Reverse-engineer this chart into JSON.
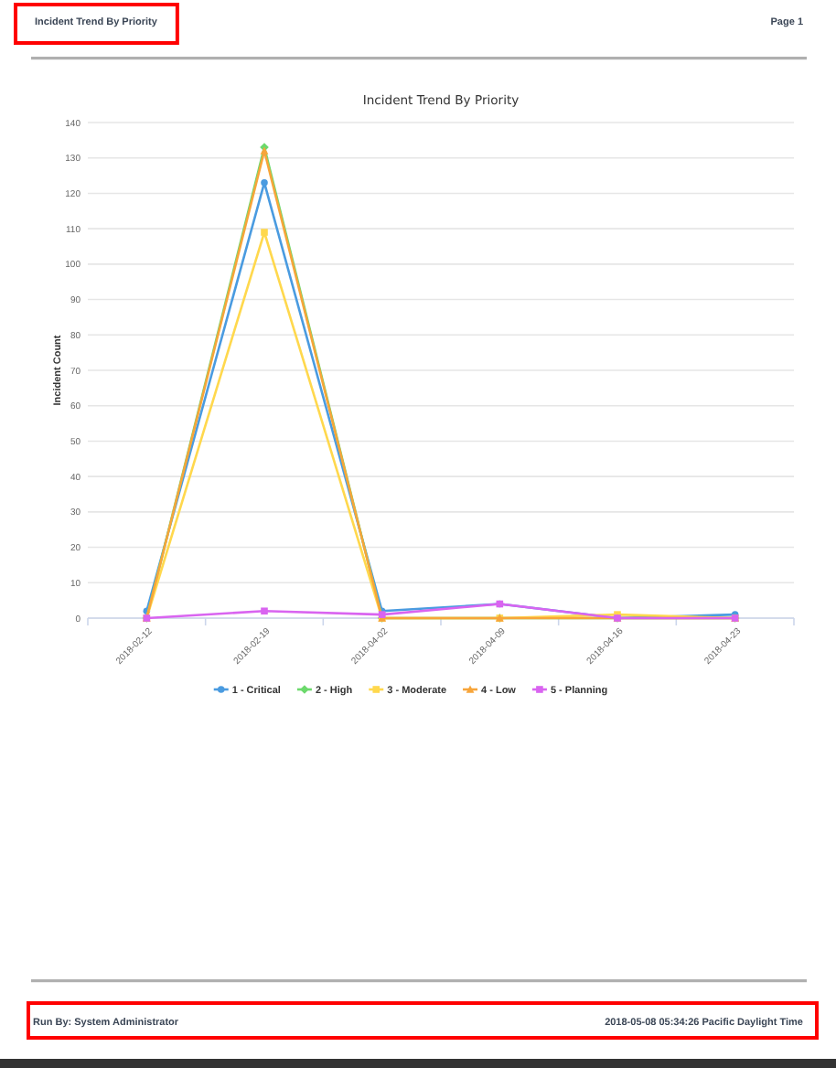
{
  "chart_data": {
    "type": "line",
    "title": "Incident Trend By Priority",
    "ylabel": "Incident Count",
    "categories": [
      "2018-02-12",
      "2018-02-19",
      "2018-04-02",
      "2018-04-09",
      "2018-04-16",
      "2018-04-23"
    ],
    "series": [
      {
        "name": "1 - Critical",
        "color": "#4a9be0",
        "marker": "circle",
        "values": [
          2,
          123,
          2,
          4,
          0,
          1
        ]
      },
      {
        "name": "2 - High",
        "color": "#6cd96c",
        "marker": "diamond",
        "values": [
          0,
          133,
          0,
          0,
          0,
          0
        ]
      },
      {
        "name": "3 - Moderate",
        "color": "#ffd84d",
        "marker": "square",
        "values": [
          0,
          109,
          0,
          0,
          1,
          0
        ]
      },
      {
        "name": "4 - Low",
        "color": "#f7a53a",
        "marker": "triangle",
        "values": [
          0,
          132,
          0,
          0,
          0,
          0
        ]
      },
      {
        "name": "5 - Planning",
        "color": "#d964f0",
        "marker": "square",
        "values": [
          0,
          2,
          1,
          4,
          0,
          0
        ]
      }
    ],
    "ylim": [
      0,
      140
    ],
    "yticks": [
      0,
      10,
      20,
      30,
      40,
      50,
      60,
      70,
      80,
      90,
      100,
      110,
      120,
      130,
      140
    ],
    "grid": "y",
    "legend": "bottom",
    "line_style": "solid",
    "annotations": [
      "Incident Trend By Priority",
      "Page 1",
      "Run By: System Administrator",
      "2018-05-08 05:34:26 Pacific Daylight Time"
    ]
  }
}
